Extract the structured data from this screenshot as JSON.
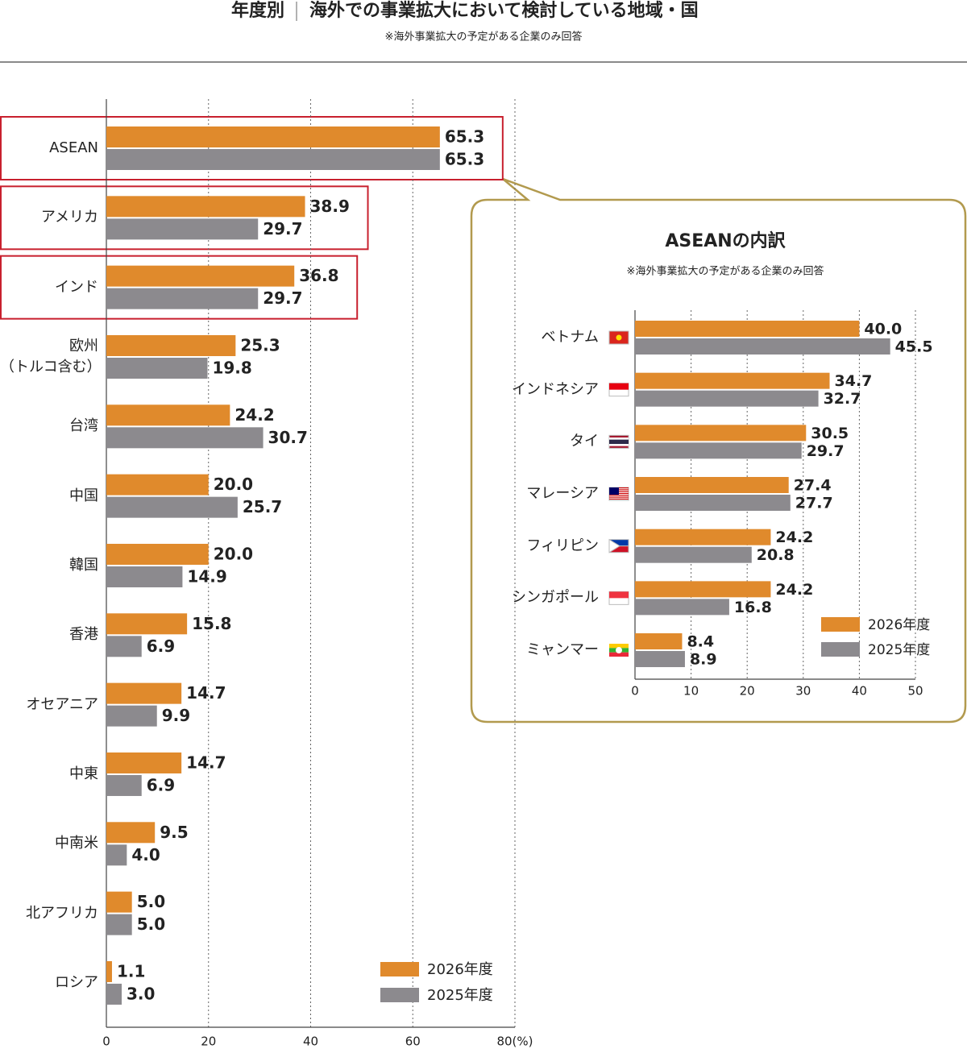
{
  "title_prefix": "年度別",
  "title": "海外での事業拡大において検討している地域・国",
  "note": "※海外事業拡大の予定がある企業のみ回答",
  "chart_data": [
    {
      "type": "hbar",
      "categories": [
        "ASEAN",
        "アメリカ",
        "インド",
        "欧州\n（トルコ含む）",
        "台湾",
        "中国",
        "韓国",
        "香港",
        "オセアニア",
        "中東",
        "中南米",
        "北アフリカ",
        "ロシア"
      ],
      "series": [
        {
          "name": "2026年度",
          "color": "#e08a2c",
          "values": [
            65.3,
            38.9,
            36.8,
            25.3,
            24.2,
            20.0,
            20.0,
            15.8,
            14.7,
            14.7,
            9.5,
            5.0,
            1.1
          ],
          "value_labels": [
            "65.3",
            "38.9",
            "36.8",
            "25.3",
            "24.2",
            "20.0",
            "20.0",
            "15.8",
            "14.7",
            "14.7",
            "9.5",
            "5.0",
            "1.1"
          ]
        },
        {
          "name": "2025年度",
          "color": "#8c8a8e",
          "values": [
            65.3,
            29.7,
            29.7,
            19.8,
            30.7,
            25.7,
            14.9,
            6.9,
            9.9,
            6.9,
            4.0,
            5.0,
            3.0
          ],
          "value_labels": [
            "65.3",
            "29.7",
            "29.7",
            "19.8",
            "30.7",
            "25.7",
            "14.9",
            "6.9",
            "9.9",
            "6.9",
            "4.0",
            "5.0",
            "3.0"
          ]
        }
      ],
      "xlim": [
        0,
        80
      ],
      "xticks": [
        0,
        20,
        40,
        60,
        {
          "value": 80,
          "label": "80(%)"
        }
      ],
      "grid": true,
      "highlight": [
        0,
        1,
        2
      ],
      "legend": "bottom-right"
    },
    {
      "type": "hbar",
      "title": "ASEANの内訳",
      "note": "※海外事業拡大の予定がある企業のみ回答",
      "categories": [
        "ベトナム",
        "インドネシア",
        "タイ",
        "マレーシア",
        "フィリピン",
        "シンガポール",
        "ミャンマー"
      ],
      "series": [
        {
          "name": "2026年度",
          "color": "#e08a2c",
          "values": [
            40.0,
            34.7,
            30.5,
            27.4,
            24.2,
            24.2,
            8.4
          ],
          "value_labels": [
            "40.0",
            "34.7",
            "30.5",
            "27.4",
            "24.2",
            "24.2",
            "8.4"
          ]
        },
        {
          "name": "2025年度",
          "color": "#8c8a8e",
          "values": [
            45.5,
            32.7,
            29.7,
            27.7,
            20.8,
            16.8,
            8.9
          ],
          "value_labels": [
            "45.5",
            "32.7",
            "29.7",
            "27.7",
            "20.8",
            "16.8",
            "8.9"
          ]
        }
      ],
      "xlim": [
        0,
        50
      ],
      "xticks": [
        0,
        10,
        20,
        30,
        40,
        50
      ],
      "grid": true,
      "legend": "bottom-right"
    }
  ]
}
